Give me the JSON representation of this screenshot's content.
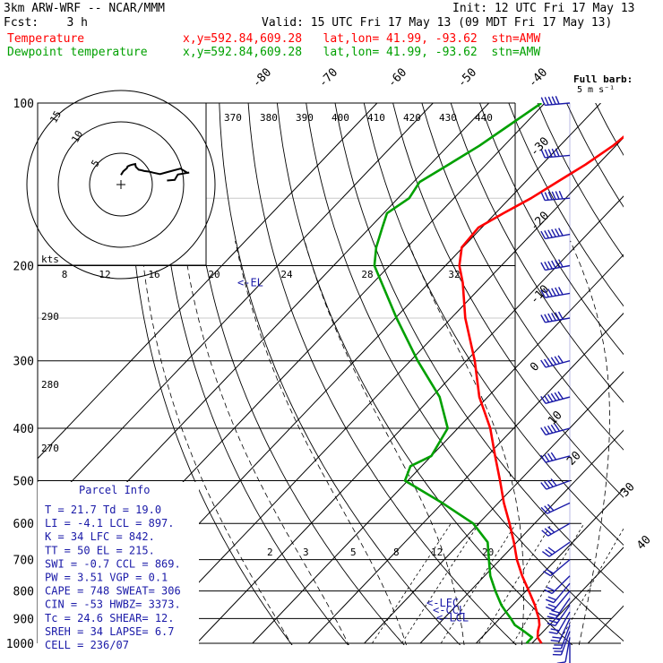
{
  "header": {
    "model": "3km ARW-WRF -- NCAR/MMM",
    "init": "Init: 12 UTC Fri 17 May 13",
    "fcst": "Fcst:    3 h",
    "valid": "Valid: 15 UTC Fri 17 May 13 (09 MDT Fri 17 May 13)",
    "temp_label": "Temperature",
    "temp_loc": "x,y=592.84,609.28   lat,lon= 41.99, -93.62  stn=AMW",
    "dew_label": "Dewpoint temperature",
    "dew_loc": "x,y=592.84,609.28   lat,lon= 41.99, -93.62  stn=AMW"
  },
  "colors": {
    "temperature": "#ff0000",
    "dewpoint": "#00a000",
    "barbs": "#1a1aa8",
    "info": "#1a1aa8",
    "grid": "#000000"
  },
  "barb_legend": {
    "title": "Full barb:",
    "value": "5 m s⁻¹"
  },
  "chart_data": {
    "type": "line",
    "subtype": "skew-T log-p thermodynamic diagram",
    "pressure_levels": [
      100,
      200,
      300,
      400,
      500,
      600,
      700,
      800,
      900,
      1000
    ],
    "pressure_range": [
      1000,
      100
    ],
    "y_scale": "log",
    "isotherm_labels": [
      "-80",
      "-70",
      "-60",
      "-50",
      "-40",
      "-30",
      "-20",
      "-10",
      "0",
      "10",
      "20",
      "30",
      "40"
    ],
    "theta_labels": [
      "370",
      "380",
      "390",
      "400",
      "410",
      "420",
      "430",
      "440"
    ],
    "theta_side_labels": [
      "290",
      "280",
      "270"
    ],
    "mixing_ratio_labels": [
      "2",
      "3",
      "5",
      "8",
      "12",
      "20"
    ],
    "series": [
      {
        "name": "Temperature",
        "p": [
          1000,
          975,
          950,
          925,
          900,
          875,
          850,
          800,
          750,
          700,
          650,
          600,
          550,
          500,
          450,
          400,
          350,
          300,
          250,
          215,
          200,
          185,
          170,
          160,
          150,
          140,
          130,
          120,
          110,
          100
        ],
        "t": [
          21.7,
          20.0,
          19.0,
          18.2,
          17.0,
          15.5,
          14.0,
          10.5,
          6.7,
          3.0,
          -0.5,
          -4.5,
          -9.0,
          -13.5,
          -18.6,
          -24.2,
          -31.5,
          -38.5,
          -47.5,
          -54.0,
          -57.5,
          -60.2,
          -60.6,
          -58.6,
          -56.2,
          -54.3,
          -52.2,
          -50.5,
          -49.6,
          -48.7
        ]
      },
      {
        "name": "Dewpoint temperature",
        "p": [
          1000,
          975,
          950,
          925,
          900,
          875,
          850,
          800,
          750,
          700,
          650,
          600,
          550,
          500,
          470,
          450,
          400,
          350,
          300,
          250,
          200,
          185,
          170,
          160,
          150,
          140,
          130,
          120,
          110,
          100
        ],
        "td": [
          19.0,
          19.0,
          16.5,
          13.8,
          12.0,
          10.0,
          8.0,
          4.5,
          1.0,
          -2.0,
          -5.2,
          -11.0,
          -20.0,
          -30.5,
          -32.0,
          -30.0,
          -31.8,
          -38.6,
          -48.7,
          -59.8,
          -72.7,
          -75.5,
          -77.8,
          -79.4,
          -78.0,
          -78.9,
          -76.7,
          -74.4,
          -72.6,
          -70.6
        ]
      }
    ],
    "parcel_markers": [
      {
        "label": "<-EL",
        "p": 215
      },
      {
        "label": "<-LFC",
        "p": 842
      },
      {
        "label": "<-CCL",
        "p": 869
      },
      {
        "label": "<-LCL",
        "p": 897
      }
    ],
    "wind_barbs": {
      "p": [
        1000,
        975,
        950,
        925,
        900,
        875,
        850,
        825,
        800,
        775,
        750,
        700,
        650,
        600,
        550,
        500,
        450,
        400,
        350,
        300,
        250,
        225,
        200,
        175,
        150,
        125,
        100
      ],
      "dir_deg": [
        180,
        190,
        200,
        200,
        205,
        210,
        215,
        215,
        220,
        220,
        225,
        230,
        235,
        240,
        245,
        250,
        255,
        255,
        255,
        255,
        260,
        260,
        260,
        260,
        265,
        265,
        265
      ],
      "speed_ms": [
        5,
        7,
        9,
        10,
        11,
        12,
        13,
        13,
        12,
        12,
        12,
        12,
        13,
        14,
        16,
        18,
        21,
        24,
        28,
        32,
        35,
        36,
        34,
        30,
        28,
        26,
        24
      ]
    },
    "hodograph": {
      "speed_unit_label": "kts",
      "ring_labels": [
        "5",
        "10",
        "15"
      ],
      "axis_labels": [
        "8",
        "12",
        "16",
        "20",
        "24",
        "28",
        "32"
      ]
    },
    "parcel_info": {
      "title": "Parcel Info",
      "rows": [
        "T   =   21.7  Td  =  19.0",
        "LI  =   -4.1  LCL =  897.",
        "K   =     34  LFC =  842.",
        "TT  =     50  EL  =  215.",
        "SWI =   -0.7  CCL =  869.",
        "PW  =   3.51  VGP =   0.1",
        "CAPE =   748  SWEAT=  306",
        "CIN  =   -53  HWBZ= 3373.",
        "Tc  =   24.6  SHEAR=  12.",
        "SREH =    34  LAPSE=  6.7",
        "CELL = 236/07"
      ]
    }
  }
}
